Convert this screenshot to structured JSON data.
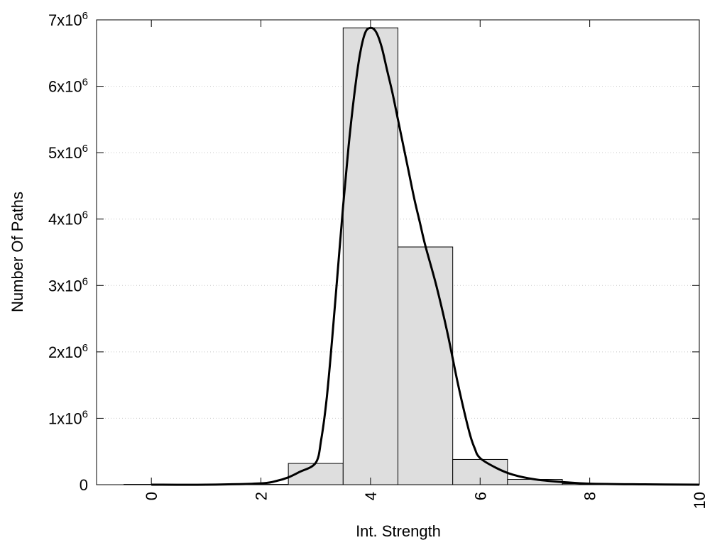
{
  "chart_data": {
    "type": "bar",
    "title": "",
    "xlabel": "Int. Strength",
    "ylabel": "Number Of Paths",
    "xlim": [
      -1,
      10
    ],
    "ylim": [
      0,
      7000000
    ],
    "grid": true,
    "bar_color": "#dedede",
    "line_color": "#000000",
    "x_ticks": [
      {
        "value": 0,
        "label": "0"
      },
      {
        "value": 2,
        "label": "2"
      },
      {
        "value": 4,
        "label": "4"
      },
      {
        "value": 6,
        "label": "6"
      },
      {
        "value": 8,
        "label": "8"
      },
      {
        "value": 10,
        "label": "10"
      }
    ],
    "y_ticks": [
      {
        "value": 0,
        "base": "0",
        "exp": ""
      },
      {
        "value": 1000000,
        "base": "1x10",
        "exp": "6"
      },
      {
        "value": 2000000,
        "base": "2x10",
        "exp": "6"
      },
      {
        "value": 3000000,
        "base": "3x10",
        "exp": "6"
      },
      {
        "value": 4000000,
        "base": "4x10",
        "exp": "6"
      },
      {
        "value": 5000000,
        "base": "5x10",
        "exp": "6"
      },
      {
        "value": 6000000,
        "base": "6x10",
        "exp": "6"
      },
      {
        "value": 7000000,
        "base": "7x10",
        "exp": "6"
      }
    ],
    "bars": [
      {
        "x": 0,
        "value": 5000
      },
      {
        "x": 1,
        "value": 5000
      },
      {
        "x": 2,
        "value": 5000
      },
      {
        "x": 3,
        "value": 320000
      },
      {
        "x": 4,
        "value": 6880000
      },
      {
        "x": 5,
        "value": 3580000
      },
      {
        "x": 6,
        "value": 380000
      },
      {
        "x": 7,
        "value": 80000
      },
      {
        "x": 8,
        "value": 15000
      },
      {
        "x": 9,
        "value": 5000
      }
    ],
    "bar_width": 1,
    "curve": {
      "x": [
        0,
        1,
        2,
        2.3,
        2.5,
        2.7,
        3,
        3.1,
        3.2,
        3.3,
        3.4,
        3.5,
        3.6,
        3.7,
        3.8,
        3.9,
        4,
        4.1,
        4.2,
        4.3,
        4.4,
        4.5,
        4.6,
        4.7,
        4.8,
        4.9,
        5,
        5.2,
        5.4,
        5.6,
        5.8,
        5.9,
        6,
        6.3,
        6.6,
        7,
        7.5,
        8,
        9,
        10
      ],
      "y": [
        0,
        0,
        20000,
        60000,
        110000,
        190000,
        330000,
        680000,
        1300000,
        2200000,
        3200000,
        4200000,
        5100000,
        5850000,
        6450000,
        6800000,
        6880000,
        6820000,
        6600000,
        6250000,
        5900000,
        5500000,
        5100000,
        4700000,
        4300000,
        3950000,
        3600000,
        3000000,
        2300000,
        1500000,
        800000,
        550000,
        400000,
        250000,
        150000,
        80000,
        40000,
        15000,
        5000,
        0
      ]
    }
  }
}
